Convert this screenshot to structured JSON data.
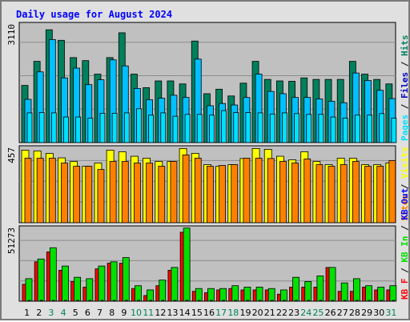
{
  "chart_data": {
    "type": "bar",
    "title": "Daily usage for August 2024",
    "categories": [
      "1",
      "2",
      "3",
      "4",
      "5",
      "6",
      "7",
      "8",
      "9",
      "10",
      "11",
      "12",
      "13",
      "14",
      "15",
      "16",
      "17",
      "18",
      "19",
      "20",
      "21",
      "22",
      "23",
      "24",
      "25",
      "26",
      "27",
      "28",
      "29",
      "30",
      "31"
    ],
    "weekend_days": [
      "3",
      "4",
      "10",
      "11",
      "17",
      "18",
      "24",
      "25",
      "31"
    ],
    "panels": [
      {
        "name": "hits-files-pages",
        "max_label": "3110",
        "ylim": [
          0,
          3110
        ],
        "right_labels": [
          "Pages",
          "Files",
          "Hits"
        ],
        "series": [
          {
            "name": "Hits",
            "values": [
              1520,
              2160,
              3000,
              2720,
              2260,
              2180,
              1820,
              2260,
              2920,
              1820,
              1460,
              1640,
              1640,
              1560,
              2700,
              1300,
              1420,
              1240,
              1580,
              2160,
              1680,
              1640,
              1630,
              1720,
              1680,
              1680,
              1680,
              2160,
              1820,
              1680,
              1560
            ]
          },
          {
            "name": "Files",
            "values": [
              1150,
              1880,
              2740,
              1720,
              1980,
              1540,
              1670,
              2200,
              2040,
              1440,
              1140,
              1180,
              1260,
              1200,
              2220,
              980,
              1040,
              1000,
              1200,
              1820,
              1360,
              1300,
              1200,
              1200,
              1160,
              1100,
              1060,
              1850,
              1650,
              1390,
              1170
            ]
          },
          {
            "name": "Pages",
            "values": [
              790,
              800,
              790,
              680,
              680,
              650,
              780,
              780,
              790,
              900,
              730,
              790,
              700,
              750,
              750,
              730,
              850,
              800,
              800,
              790,
              760,
              790,
              770,
              750,
              750,
              680,
              650,
              730,
              730,
              770,
              650
            ]
          }
        ]
      },
      {
        "name": "visits-sites",
        "max_label": "457",
        "ylim": [
          0,
          457
        ],
        "right_labels": [
          "Sites",
          "Visits"
        ],
        "series": [
          {
            "name": "Visits",
            "values": [
              450,
              445,
              430,
              402,
              380,
              350,
              370,
              450,
              440,
              412,
              400,
              380,
              380,
              460,
              430,
              360,
              350,
              360,
              398,
              460,
              455,
              412,
              390,
              440,
              380,
              360,
              400,
              400,
              360,
              360,
              370
            ]
          },
          {
            "name": "Sites",
            "values": [
              400,
              400,
              400,
              370,
              350,
              350,
              330,
              380,
              380,
              370,
              370,
              350,
              380,
              420,
              400,
              350,
              355,
              360,
              400,
              400,
              398,
              380,
              370,
              395,
              360,
              350,
              360,
              380,
              350,
              350,
              385
            ]
          }
        ]
      },
      {
        "name": "kbytes",
        "max_label": "51273",
        "ylim": [
          0,
          51273
        ],
        "right_labels": [
          "KB F",
          "KB In",
          "KB Out"
        ],
        "series": [
          {
            "name": "KB F",
            "values": [
              12000,
              28000,
              35000,
              22000,
              14000,
              10000,
              23000,
              27000,
              27000,
              9000,
              4000,
              11000,
              22000,
              49000,
              7000,
              6000,
              8000,
              9000,
              8000,
              8000,
              8000,
              5000,
              10000,
              10000,
              10000,
              24000,
              7000,
              7000,
              10000,
              8000,
              8000
            ]
          },
          {
            "name": "KB In",
            "values": [
              16000,
              30000,
              38000,
              25000,
              17000,
              16000,
              25000,
              28000,
              31000,
              11000,
              8000,
              15000,
              24000,
              52000,
              9000,
              9000,
              9000,
              11000,
              10000,
              10000,
              9000,
              8000,
              17000,
              14000,
              18000,
              24000,
              13000,
              16000,
              11000,
              10000,
              11000
            ]
          },
          {
            "name": "KB Out",
            "values": [
              300,
              400,
              500,
              400,
              300,
              200,
              300,
              400,
              500,
              200,
              150,
              200,
              300,
              600,
              200,
              150,
              200,
              200,
              200,
              200,
              200,
              150,
              200,
              200,
              200,
              300,
              200,
              200,
              200,
              200,
              200
            ]
          }
        ]
      }
    ],
    "colors": {
      "hits": "#00805c",
      "files": "#00c0ff",
      "pages": "#00e0ff",
      "visits": "#ffff00",
      "sites": "#ff8000",
      "kb_f": "#ff0000",
      "kb_in": "#00e000",
      "title": "#0000ff",
      "weekday": "#000000",
      "weekend": "#00805c",
      "panel_bg": "#c0c0c0"
    }
  }
}
